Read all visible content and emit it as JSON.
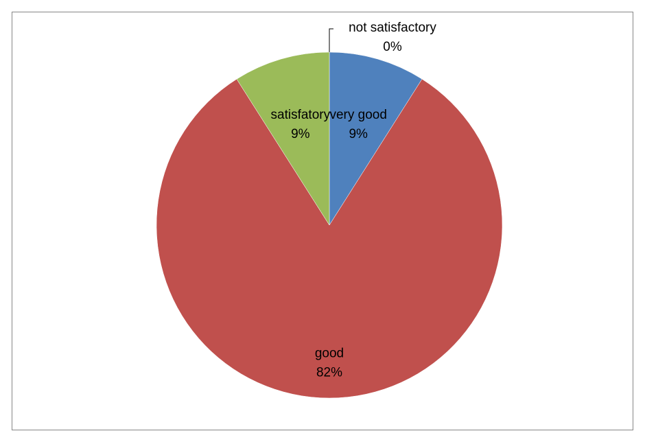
{
  "chart_data": {
    "type": "pie",
    "title": "",
    "slices": [
      {
        "label": "very good",
        "value": 9,
        "value_text": "9%",
        "color": "#4F81BD"
      },
      {
        "label": "good",
        "value": 82,
        "value_text": "82%",
        "color": "#C0504D"
      },
      {
        "label": "satisfatory",
        "value": 9,
        "value_text": "9%",
        "color": "#9BBB59"
      },
      {
        "label": "not satisfactory",
        "value": 0,
        "value_text": "0%",
        "color": "#8064A2"
      }
    ],
    "data_labels": "inside, category and percentage",
    "legend": "none",
    "start_angle": "12 o'clock, clockwise"
  }
}
